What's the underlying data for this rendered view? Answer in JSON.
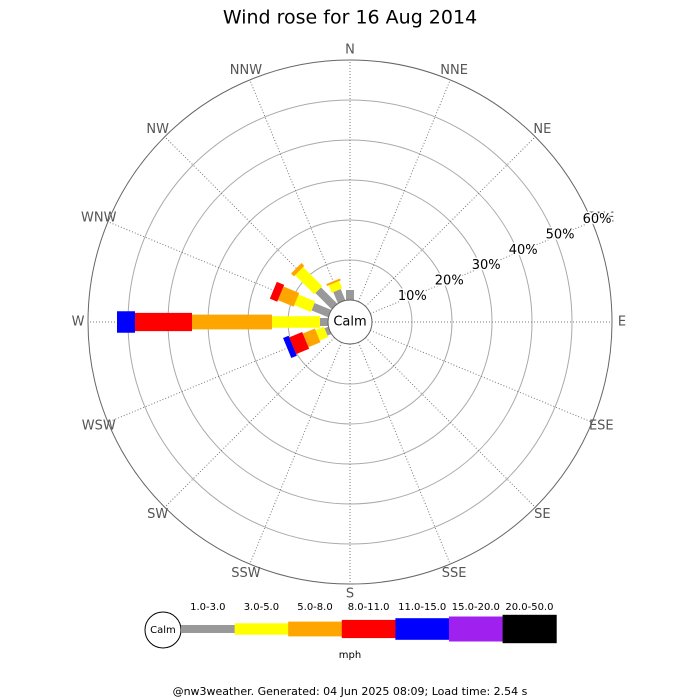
{
  "chart_data": {
    "type": "windrose",
    "title": "Wind rose for 16 Aug 2014",
    "calm_label": "Calm",
    "unit": "mph",
    "footer": "@nw3weather. Generated: 04 Jun 2025 08:09; Load time: 2.54 s",
    "categories": [
      "N",
      "NNE",
      "NE",
      "ENE",
      "E",
      "ESE",
      "SE",
      "SSE",
      "S",
      "SSW",
      "SW",
      "WSW",
      "W",
      "WNW",
      "NW",
      "NNW"
    ],
    "rlim": [
      0,
      60
    ],
    "rticks": [
      {
        "value": 10,
        "label": "10%"
      },
      {
        "value": 20,
        "label": "20%"
      },
      {
        "value": 30,
        "label": "30%"
      },
      {
        "value": 40,
        "label": "40%"
      },
      {
        "value": 50,
        "label": "50%"
      },
      {
        "value": 60,
        "label": "60%"
      }
    ],
    "series": [
      {
        "name": "1.0-3.0",
        "color": "#999999",
        "values": [
          2.5,
          0,
          0,
          0,
          0,
          0,
          0,
          0,
          0,
          0,
          0,
          1,
          2,
          4.5,
          5.75,
          3
        ]
      },
      {
        "name": "3.0-5.0",
        "color": "#ffff00",
        "values": [
          0,
          0,
          0,
          0,
          0,
          0,
          0,
          0,
          0,
          0,
          0,
          2.25,
          12,
          4.5,
          6.75,
          2
        ]
      },
      {
        "name": "5.0-8.0",
        "color": "#ffa500",
        "values": [
          0,
          0,
          0,
          0,
          0,
          0,
          0,
          0,
          0,
          0,
          0,
          3.25,
          20,
          4.25,
          1,
          0.5
        ]
      },
      {
        "name": "8.0-11.0",
        "color": "#ff0000",
        "values": [
          0,
          0,
          0,
          0,
          0,
          0,
          0,
          0,
          0,
          0,
          0,
          3.5,
          14.25,
          2,
          0,
          0
        ]
      },
      {
        "name": "11.0-15.0",
        "color": "#0000ff",
        "values": [
          0,
          0,
          0,
          0,
          0,
          0,
          0,
          0,
          0,
          0,
          0,
          1.5,
          4.5,
          0,
          0,
          0
        ]
      },
      {
        "name": "15.0-20.0",
        "color": "#a020f0",
        "values": [
          0,
          0,
          0,
          0,
          0,
          0,
          0,
          0,
          0,
          0,
          0,
          0,
          0,
          0,
          0,
          0
        ]
      },
      {
        "name": "20.0-50.0",
        "color": "#000000",
        "values": [
          0,
          0,
          0,
          0,
          0,
          0,
          0,
          0,
          0,
          0,
          0,
          0,
          0,
          0,
          0,
          0
        ]
      }
    ]
  }
}
